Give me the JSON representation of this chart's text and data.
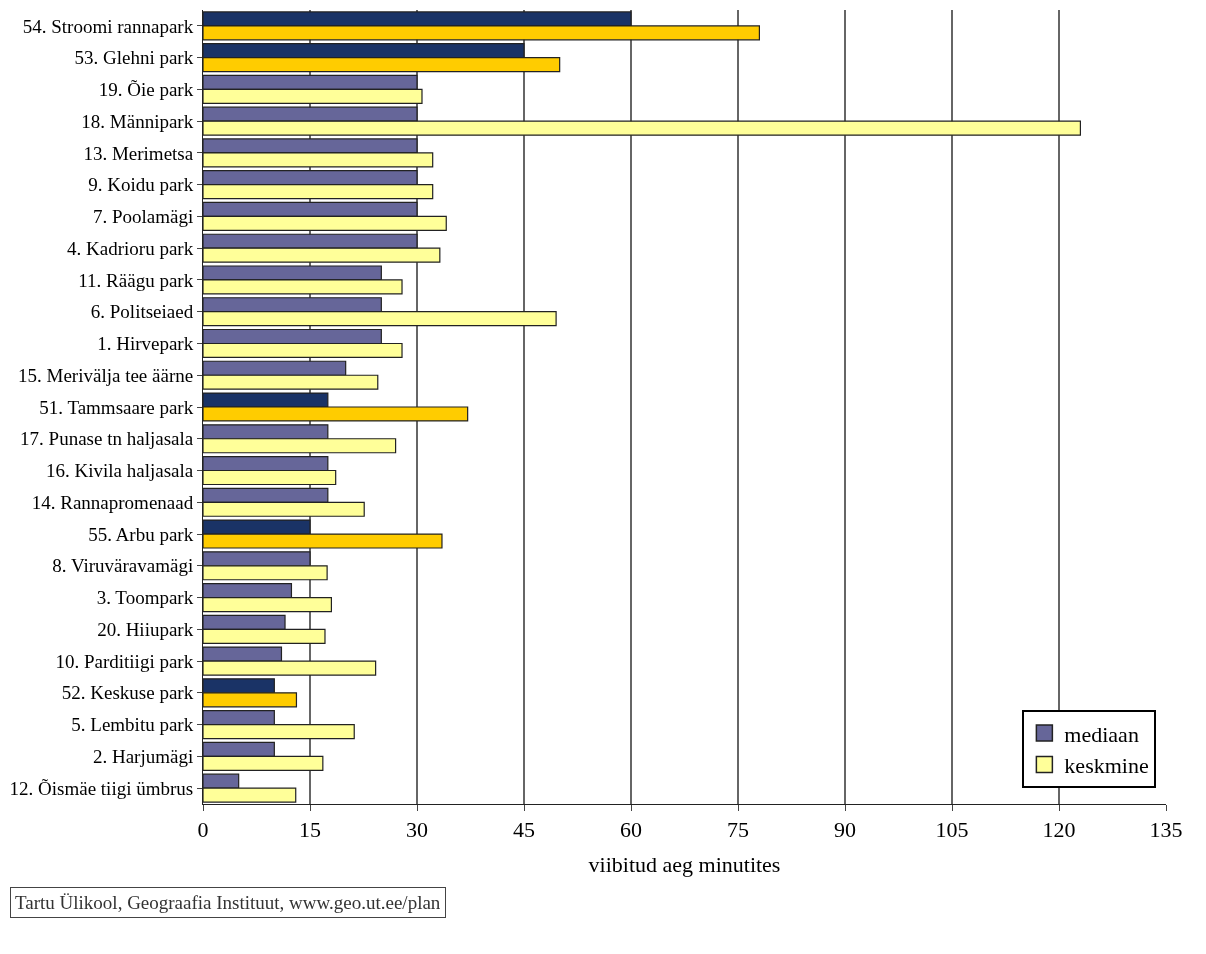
{
  "chart_data": {
    "type": "bar",
    "orientation": "horizontal",
    "categories": [
      "54. Stroomi rannapark",
      "53. Glehni park",
      "19. Õie park",
      "18. Männipark",
      "13. Merimetsa",
      "9. Koidu park",
      "7. Poolamägi",
      "4. Kadrioru park",
      "11. Räägu park",
      "6. Politseiaed",
      "1. Hirvepark",
      "15. Merivälja tee äärne",
      "51. Tammsaare park",
      "17. Punase tn haljasala",
      "16. Kivila haljasala",
      "14. Rannapromenaad",
      "55. Arbu park",
      "8. Viruväravamägi",
      "3. Toompark",
      "20. Hiiupark",
      "10. Parditiigi park",
      "52. Keskuse park",
      "5. Lembitu park",
      "2. Harjumägi",
      "12. Õismäe tiigi ümbrus"
    ],
    "series": [
      {
        "name": "mediaan",
        "color": "#666699",
        "colors": [
          "#1a3366",
          "#1a3366",
          "#666699",
          "#666699",
          "#666699",
          "#666699",
          "#666699",
          "#666699",
          "#666699",
          "#666699",
          "#666699",
          "#666699",
          "#1a3366",
          "#666699",
          "#666699",
          "#666699",
          "#1a3366",
          "#666699",
          "#666699",
          "#666699",
          "#666699",
          "#1a3366",
          "#666699",
          "#666699",
          "#666699"
        ],
        "values": [
          60,
          45,
          30,
          30,
          30,
          30,
          30,
          30,
          25,
          25,
          25,
          20,
          17.5,
          17.5,
          17.5,
          17.5,
          15,
          15,
          12.4,
          11.5,
          11,
          10,
          10,
          10,
          5
        ]
      },
      {
        "name": "keskmine",
        "color": "#ffff99",
        "colors": [
          "#ffcc00",
          "#ffcc00",
          "#ffff99",
          "#ffff99",
          "#ffff99",
          "#ffff99",
          "#ffff99",
          "#ffff99",
          "#ffff99",
          "#ffff99",
          "#ffff99",
          "#ffff99",
          "#ffcc00",
          "#ffff99",
          "#ffff99",
          "#ffff99",
          "#ffcc00",
          "#ffff99",
          "#ffff99",
          "#ffff99",
          "#ffff99",
          "#ffcc00",
          "#ffff99",
          "#ffff99",
          "#ffff99"
        ],
        "values": [
          78,
          50,
          30.7,
          123,
          32.2,
          32.2,
          34.1,
          33.2,
          27.9,
          49.5,
          27.9,
          24.5,
          37.1,
          27,
          18.6,
          22.6,
          33.5,
          17.4,
          18,
          17.1,
          24.2,
          13.1,
          21.2,
          16.8,
          13
        ]
      }
    ],
    "xlabel": "viibitud aeg minutites",
    "xlim": [
      0,
      135
    ],
    "xticks": [
      0,
      15,
      30,
      45,
      60,
      75,
      90,
      105,
      120,
      135
    ],
    "grid": "x",
    "legend": "bottom right",
    "annotations": [
      "Tartu Ülikool, Geograafia Instituut, www.geo.ut.ee/plan"
    ]
  }
}
